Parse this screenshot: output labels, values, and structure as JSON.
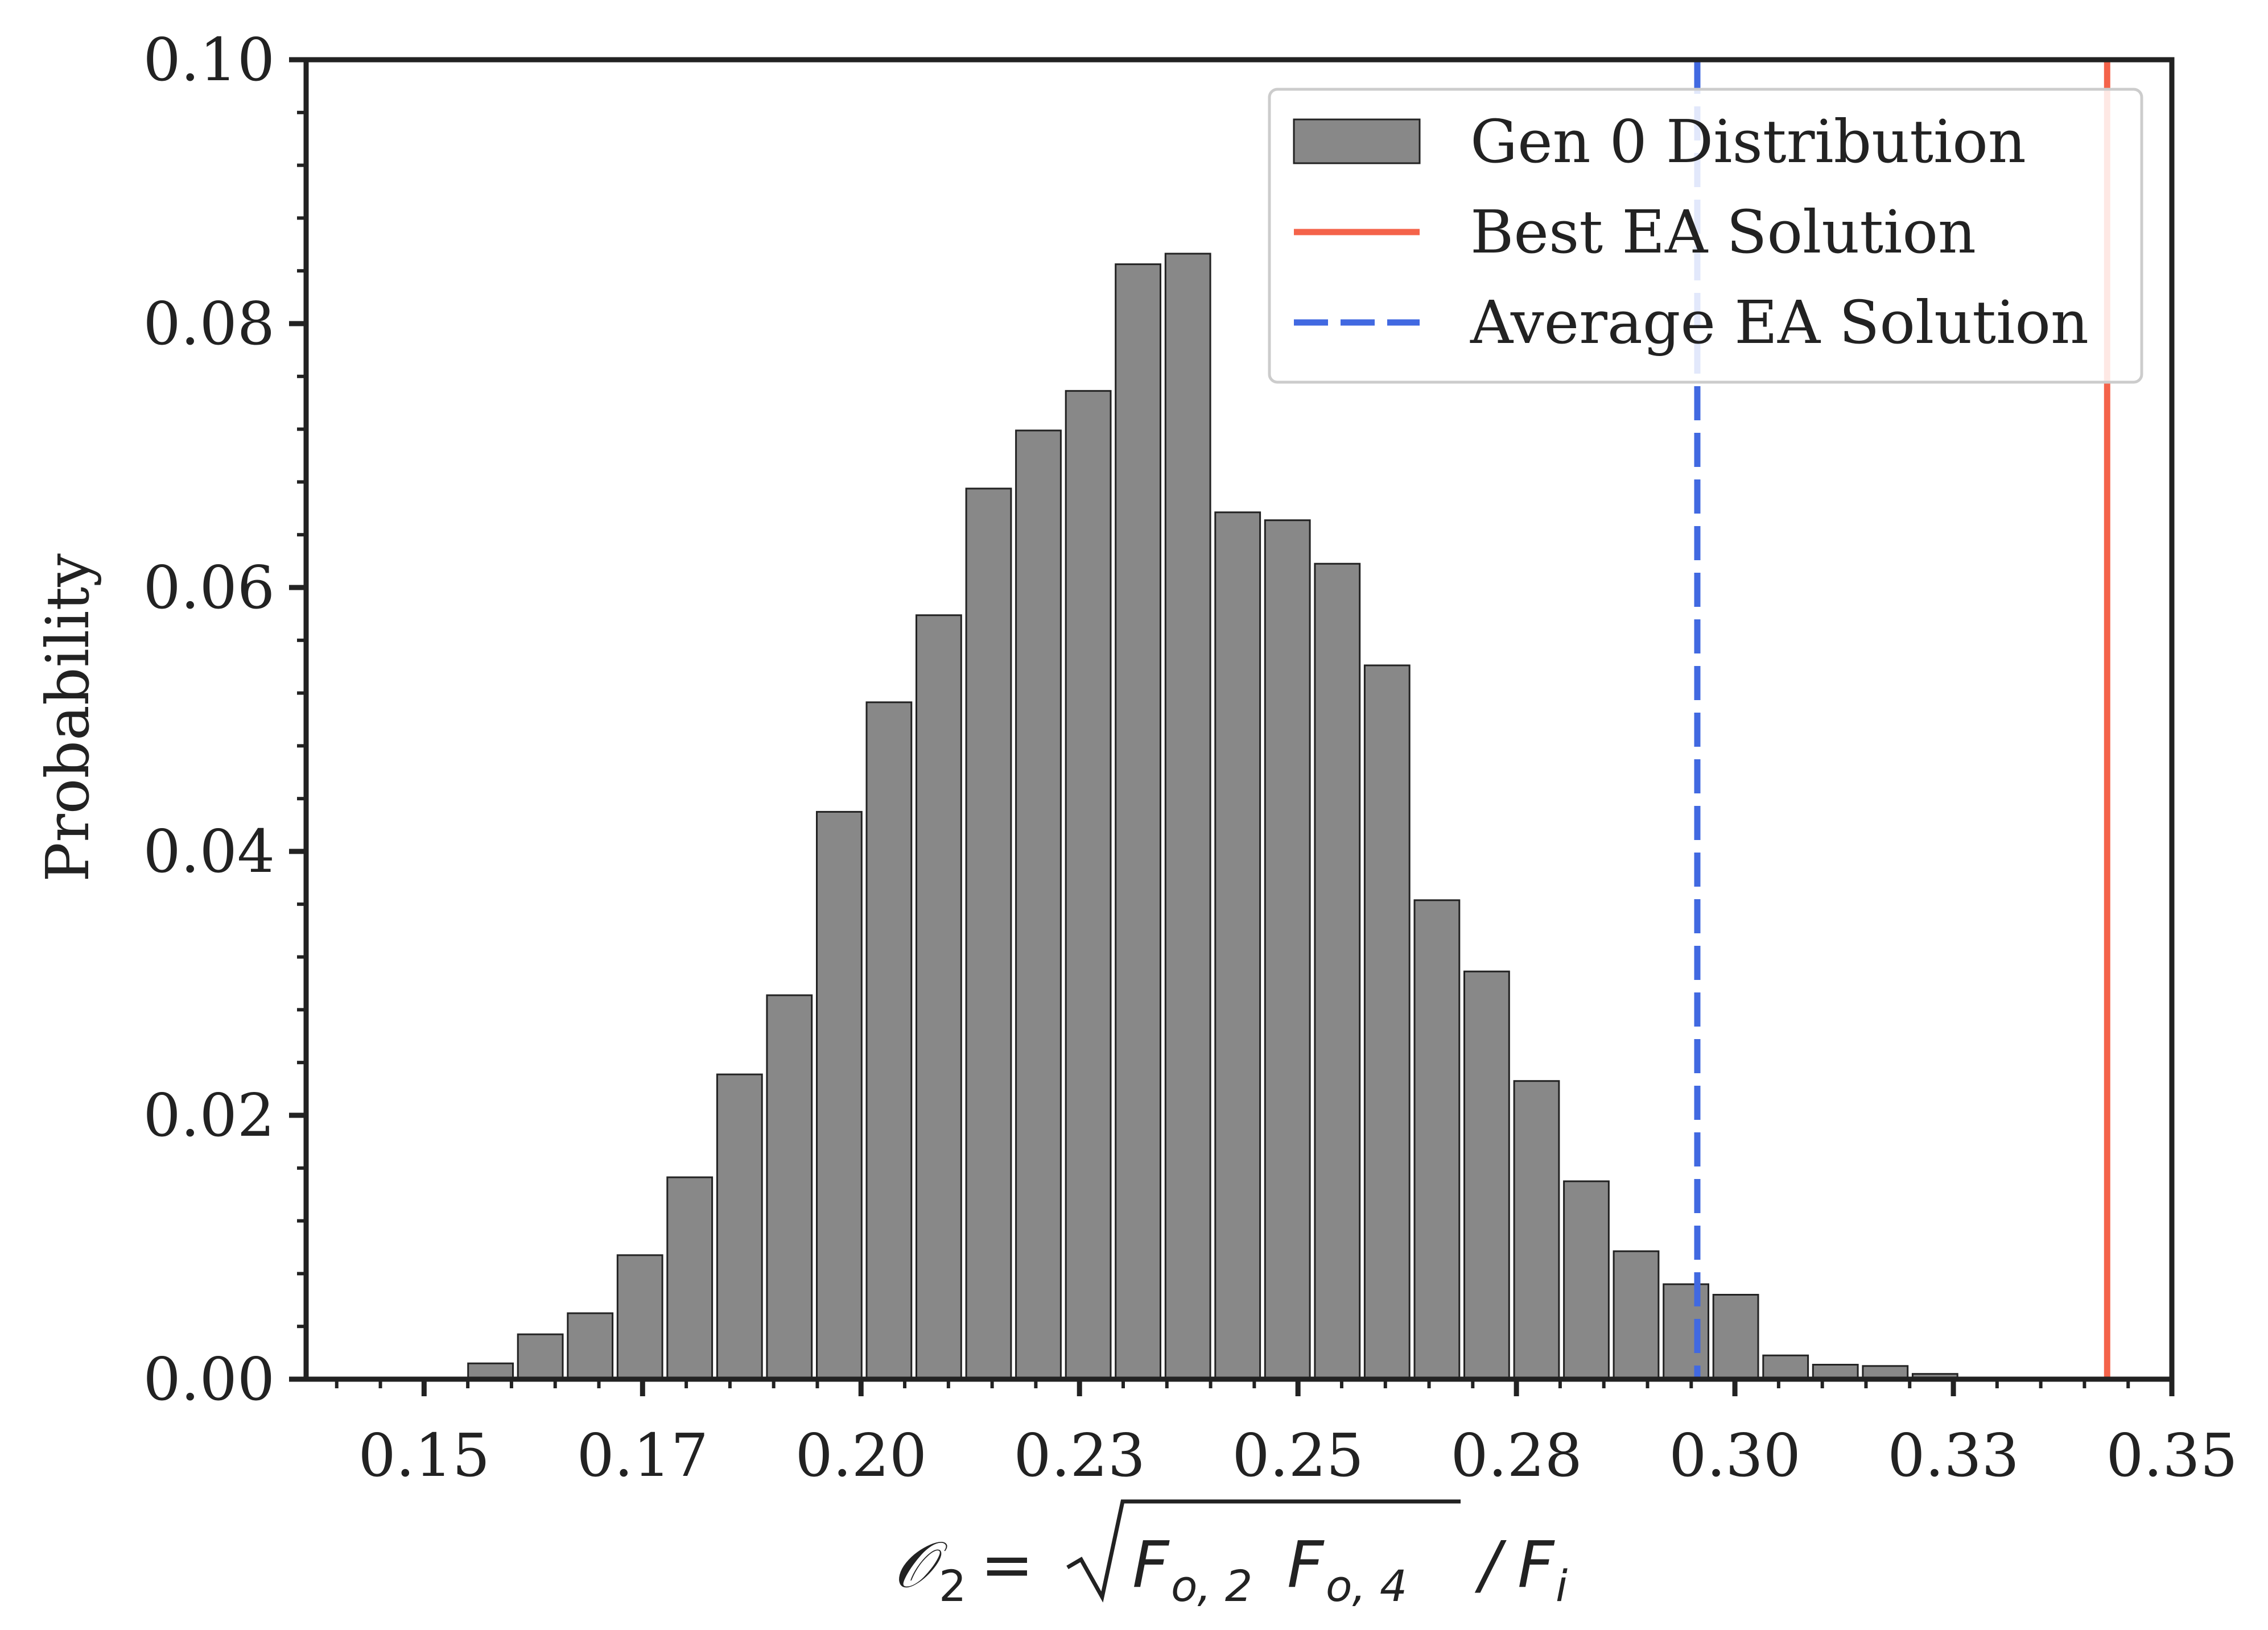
{
  "chart_data": {
    "type": "bar",
    "title": "",
    "ylabel": "Probability",
    "xlabel": {
      "symbol": "𝒪",
      "subscript": "2",
      "equals": "=",
      "factor1": "F",
      "factor1_sub": "o, 2",
      "factor2": "F",
      "factor2_sub": "o, 4",
      "slash": "/",
      "denominator": "F",
      "denominator_sub": "i"
    },
    "xlim": [
      0.1365,
      0.35
    ],
    "ylim": [
      0,
      0.1
    ],
    "x_ticks": [
      0.15,
      0.175,
      0.2,
      0.225,
      0.25,
      0.275,
      0.3,
      0.325,
      0.35
    ],
    "x_tick_labels": [
      "0.15",
      "0.17",
      "0.20",
      "0.23",
      "0.25",
      "0.28",
      "0.30",
      "0.33",
      "0.35"
    ],
    "y_ticks": [
      0,
      0.02,
      0.04,
      0.06,
      0.08,
      0.1
    ],
    "y_tick_labels": [
      "0.00",
      "0.02",
      "0.04",
      "0.06",
      "0.08",
      "0.10"
    ],
    "bar_width_fraction": 0.9,
    "bins": [
      [
        0.1519,
        0.0
      ],
      [
        0.1576,
        0.0012
      ],
      [
        0.1633,
        0.0034
      ],
      [
        0.169,
        0.005
      ],
      [
        0.1747,
        0.0094
      ],
      [
        0.1804,
        0.0153
      ],
      [
        0.1861,
        0.0231
      ],
      [
        0.1918,
        0.0291
      ],
      [
        0.1975,
        0.043
      ],
      [
        0.2032,
        0.0513
      ],
      [
        0.2089,
        0.0579
      ],
      [
        0.2146,
        0.0675
      ],
      [
        0.2203,
        0.0719
      ],
      [
        0.226,
        0.0749
      ],
      [
        0.2317,
        0.0845
      ],
      [
        0.2374,
        0.0853
      ],
      [
        0.2431,
        0.0657
      ],
      [
        0.2488,
        0.0651
      ],
      [
        0.2545,
        0.0618
      ],
      [
        0.2602,
        0.0541
      ],
      [
        0.2659,
        0.0363
      ],
      [
        0.2716,
        0.0309
      ],
      [
        0.2773,
        0.0226
      ],
      [
        0.283,
        0.015
      ],
      [
        0.2887,
        0.0097
      ],
      [
        0.2944,
        0.0072
      ],
      [
        0.3001,
        0.0064
      ],
      [
        0.3058,
        0.0018
      ],
      [
        0.3115,
        0.0011
      ],
      [
        0.3172,
        0.001
      ],
      [
        0.3229,
        0.0004
      ]
    ],
    "vlines": [
      {
        "name": "Best EA Solution",
        "x": 0.3426,
        "color": "#f4634a",
        "style": "solid"
      },
      {
        "name": "Average EA Solution",
        "x": 0.2957,
        "color": "#4169e1",
        "style": "dashed"
      }
    ],
    "legend": {
      "position": "top-right",
      "entries": [
        {
          "label": "Gen 0 Distribution",
          "kind": "bar",
          "color": "#888888"
        },
        {
          "label": "Best EA Solution",
          "kind": "line",
          "color": "#f4634a"
        },
        {
          "label": "Average EA Solution",
          "kind": "dash",
          "color": "#4169e1"
        }
      ]
    },
    "colors": {
      "bar_fill": "#888888",
      "bar_edge": "#222222",
      "axis": "#222222"
    },
    "grid": false
  }
}
